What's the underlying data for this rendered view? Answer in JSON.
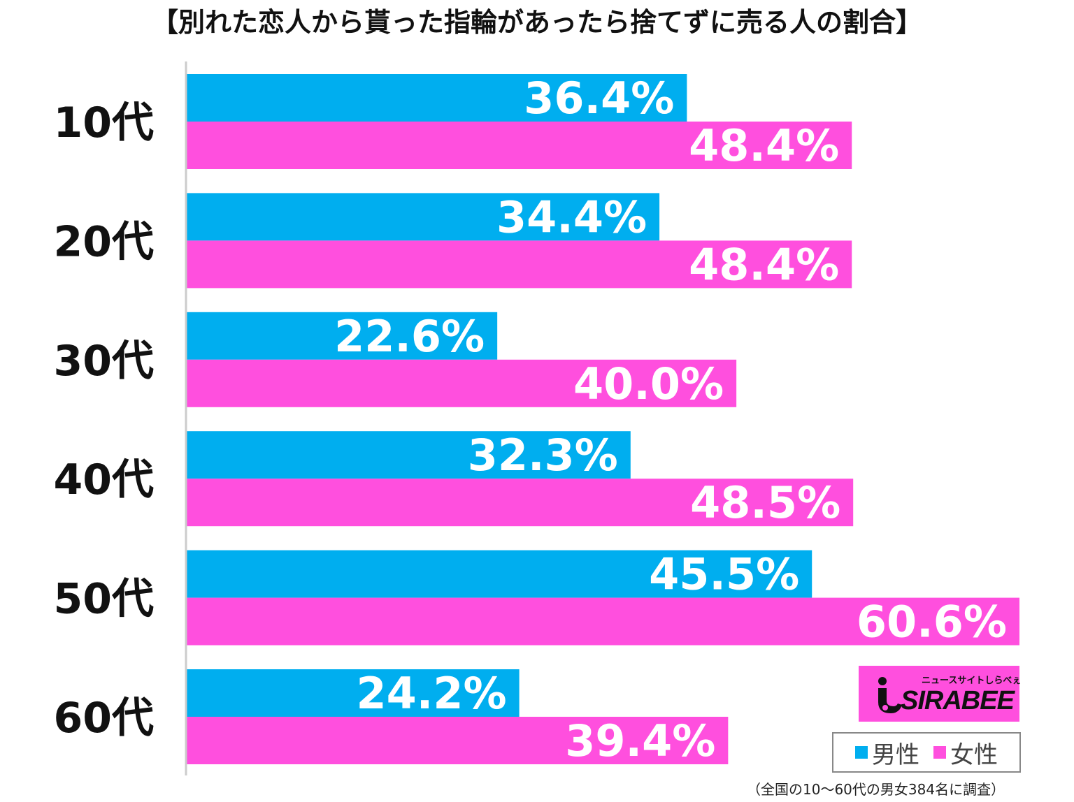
{
  "chart_data": {
    "type": "bar",
    "orientation": "horizontal",
    "title": "【別れた恋人から貰った指輪があったら捨てずに売る人の割合】",
    "categories": [
      "10代",
      "20代",
      "30代",
      "40代",
      "50代",
      "60代"
    ],
    "series": [
      {
        "name": "男性",
        "color": "#00aeef",
        "values": [
          36.4,
          34.4,
          22.6,
          32.3,
          45.5,
          24.2
        ]
      },
      {
        "name": "女性",
        "color": "#ff4fde",
        "values": [
          48.4,
          48.4,
          40.0,
          48.5,
          60.6,
          39.4
        ]
      }
    ],
    "value_labels": {
      "男性": [
        "36.4%",
        "34.4%",
        "22.6%",
        "32.3%",
        "45.5%",
        "24.2%"
      ],
      "女性": [
        "48.4%",
        "48.4%",
        "40.0%",
        "48.5%",
        "60.6%",
        "39.4%"
      ]
    },
    "xlim": [
      0,
      60.6
    ],
    "grid": false,
    "legend_position": "bottom-right",
    "footnote": "（全国の10〜60代の男女384名に調査）"
  },
  "logo": {
    "tagline": "ニュースサイトしらべぇ",
    "wordmark": "SIRABEE",
    "icon": "sirabee-i-icon",
    "color": "#ff4fde"
  },
  "colors": {
    "male": "#00aeef",
    "female": "#ff4fde",
    "axis": "#cccccc"
  }
}
